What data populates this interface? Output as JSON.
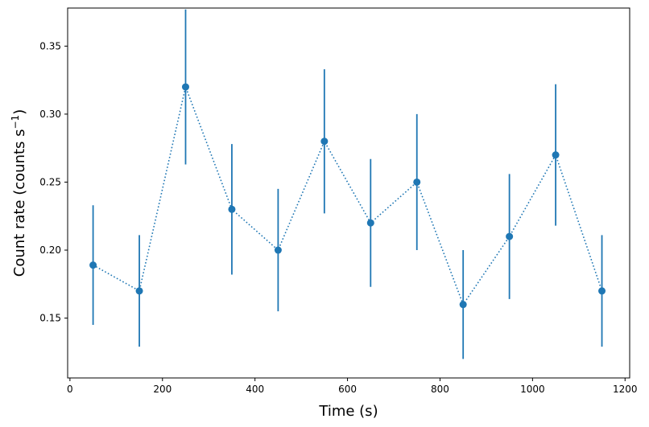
{
  "chart_data": {
    "type": "scatter",
    "xlabel": "Time (s)",
    "ylabel": {
      "main": "Count rate (counts s",
      "sup_prefix": "−",
      "sup_num": "1",
      "close": ")"
    },
    "xlim": [
      -5,
      1210
    ],
    "ylim": [
      0.106,
      0.378
    ],
    "xticks": [
      0,
      200,
      400,
      600,
      800,
      1000,
      1200
    ],
    "xtick_labels": [
      "0",
      "200",
      "400",
      "600",
      "800",
      "1000",
      "1200"
    ],
    "yticks": [
      0.15,
      0.2,
      0.25,
      0.3,
      0.35
    ],
    "ytick_labels": [
      "0.15",
      "0.20",
      "0.25",
      "0.30",
      "0.35"
    ],
    "grid": false,
    "color": "#1f77b4",
    "line_style": "dotted",
    "marker": "circle",
    "points": [
      {
        "x": 50,
        "y": 0.189,
        "yerr": 0.044
      },
      {
        "x": 150,
        "y": 0.17,
        "yerr": 0.041
      },
      {
        "x": 250,
        "y": 0.32,
        "yerr": 0.057
      },
      {
        "x": 350,
        "y": 0.23,
        "yerr": 0.048
      },
      {
        "x": 450,
        "y": 0.2,
        "yerr": 0.045
      },
      {
        "x": 550,
        "y": 0.28,
        "yerr": 0.053
      },
      {
        "x": 650,
        "y": 0.22,
        "yerr": 0.047
      },
      {
        "x": 750,
        "y": 0.25,
        "yerr": 0.05
      },
      {
        "x": 850,
        "y": 0.16,
        "yerr": 0.04
      },
      {
        "x": 950,
        "y": 0.21,
        "yerr": 0.046
      },
      {
        "x": 1050,
        "y": 0.27,
        "yerr": 0.052
      },
      {
        "x": 1150,
        "y": 0.17,
        "yerr": 0.041
      }
    ]
  }
}
